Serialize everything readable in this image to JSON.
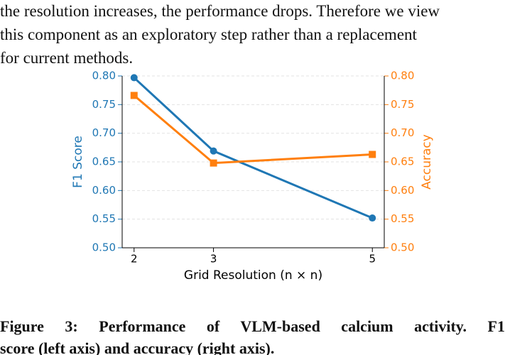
{
  "body_text": [
    "the resolution increases, the performance drops. Therefore we view",
    "this component as an exploratory step rather than a replacement",
    "for current methods."
  ],
  "chart_data": {
    "type": "line",
    "x": [
      2,
      3,
      5
    ],
    "xlim": [
      1.85,
      5.15
    ],
    "xticks": [
      2,
      3,
      5
    ],
    "xlabel": "Grid Resolution (n × n)",
    "ylabel": "F1 Score",
    "y2label": "Accuracy",
    "ylim": [
      0.5,
      0.8
    ],
    "yticks": [
      {
        "value": 0.5,
        "label": "0.50"
      },
      {
        "value": 0.55,
        "label": "0.55"
      },
      {
        "value": 0.6,
        "label": "0.60"
      },
      {
        "value": 0.65,
        "label": "0.65"
      },
      {
        "value": 0.7,
        "label": "0.70"
      },
      {
        "value": 0.75,
        "label": "0.75"
      },
      {
        "value": 0.8,
        "label": "0.80"
      }
    ],
    "y2lim": [
      0.5,
      0.8
    ],
    "y2ticks": [
      {
        "value": 0.5,
        "label": "0.50"
      },
      {
        "value": 0.55,
        "label": "0.55"
      },
      {
        "value": 0.6,
        "label": "0.60"
      },
      {
        "value": 0.65,
        "label": "0.65"
      },
      {
        "value": 0.7,
        "label": "0.70"
      },
      {
        "value": 0.75,
        "label": "0.75"
      },
      {
        "value": 0.8,
        "label": "0.80"
      }
    ],
    "grid": true,
    "series": [
      {
        "name": "F1 Score",
        "color": "#1f77b4",
        "marker": "circle",
        "values": [
          0.797,
          0.669,
          0.552
        ]
      },
      {
        "name": "Accuracy",
        "color": "#ff7f0e",
        "marker": "square",
        "axis": "y2",
        "values": [
          0.766,
          0.648,
          0.663
        ]
      }
    ]
  },
  "caption": [
    "Figure 3: Performance of VLM-based calcium activity. F1",
    "score (left axis) and accuracy (right axis)."
  ]
}
